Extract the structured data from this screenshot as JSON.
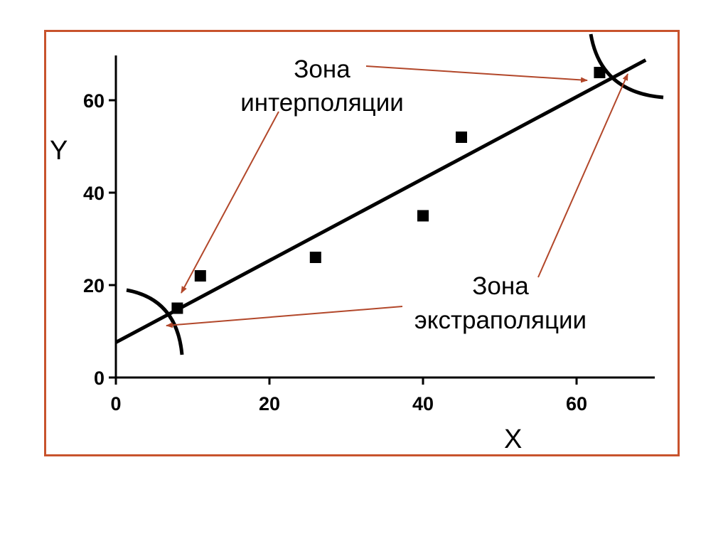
{
  "chart_data": {
    "type": "scatter",
    "xlabel": "X",
    "ylabel": "Y",
    "xlim": [
      0,
      70
    ],
    "ylim": [
      0,
      70
    ],
    "x_ticks": [
      0,
      20,
      40,
      60
    ],
    "y_ticks": [
      0,
      20,
      40,
      60
    ],
    "x_tick_labels": [
      "0",
      "20",
      "40",
      "60"
    ],
    "y_tick_labels": [
      "0",
      "20",
      "40",
      "60"
    ],
    "grid": false,
    "points": [
      {
        "x": 8,
        "y": 15
      },
      {
        "x": 11,
        "y": 22
      },
      {
        "x": 26,
        "y": 26
      },
      {
        "x": 40,
        "y": 35
      },
      {
        "x": 45,
        "y": 52
      },
      {
        "x": 63,
        "y": 66
      }
    ],
    "fit_line": {
      "x_start": 0,
      "y_start": 7.6,
      "x_end": 69,
      "y_end": 68.7
    },
    "annotations": {
      "interpolation": [
        "Зона",
        "интерполяции"
      ],
      "extrapolation": [
        "Зона",
        "экстраполяции"
      ]
    },
    "frame_color": "#c8532d",
    "arrow_color": "#b2472a",
    "marker_color": "#000000"
  }
}
